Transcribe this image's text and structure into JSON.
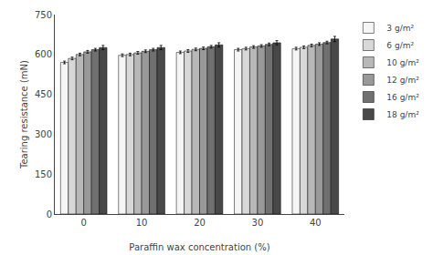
{
  "chart_data": {
    "type": "bar",
    "xlabel": "Paraffin wax concentration (%)",
    "ylabel": "Tearing resistance (mN)",
    "categories": [
      "0",
      "10",
      "20",
      "30",
      "40"
    ],
    "series": [
      {
        "name": "3 g/m²",
        "color": "#f5f5f5",
        "values": [
          570,
          597,
          608,
          618,
          622
        ],
        "errors": [
          5,
          5,
          5,
          5,
          5
        ]
      },
      {
        "name": "6 g/m²",
        "color": "#d8d8d8",
        "values": [
          585,
          600,
          613,
          622,
          627
        ],
        "errors": [
          5,
          5,
          5,
          5,
          5
        ]
      },
      {
        "name": "10 g/m²",
        "color": "#b8b8b8",
        "values": [
          600,
          606,
          619,
          628,
          634
        ],
        "errors": [
          5,
          5,
          5,
          5,
          5
        ]
      },
      {
        "name": "12 g/m²",
        "color": "#999999",
        "values": [
          610,
          612,
          623,
          632,
          639
        ],
        "errors": [
          5,
          5,
          5,
          5,
          5
        ]
      },
      {
        "name": "16 g/m²",
        "color": "#707070",
        "values": [
          618,
          618,
          629,
          638,
          645
        ],
        "errors": [
          5,
          5,
          5,
          5,
          5
        ]
      },
      {
        "name": "18 g/m²",
        "color": "#484848",
        "values": [
          626,
          626,
          636,
          644,
          658
        ],
        "errors": [
          8,
          8,
          8,
          8,
          10
        ]
      }
    ],
    "ylim": [
      0,
      750
    ],
    "yticks": [
      0,
      150,
      300,
      450,
      600,
      750
    ],
    "grid": false,
    "legend": "right"
  }
}
